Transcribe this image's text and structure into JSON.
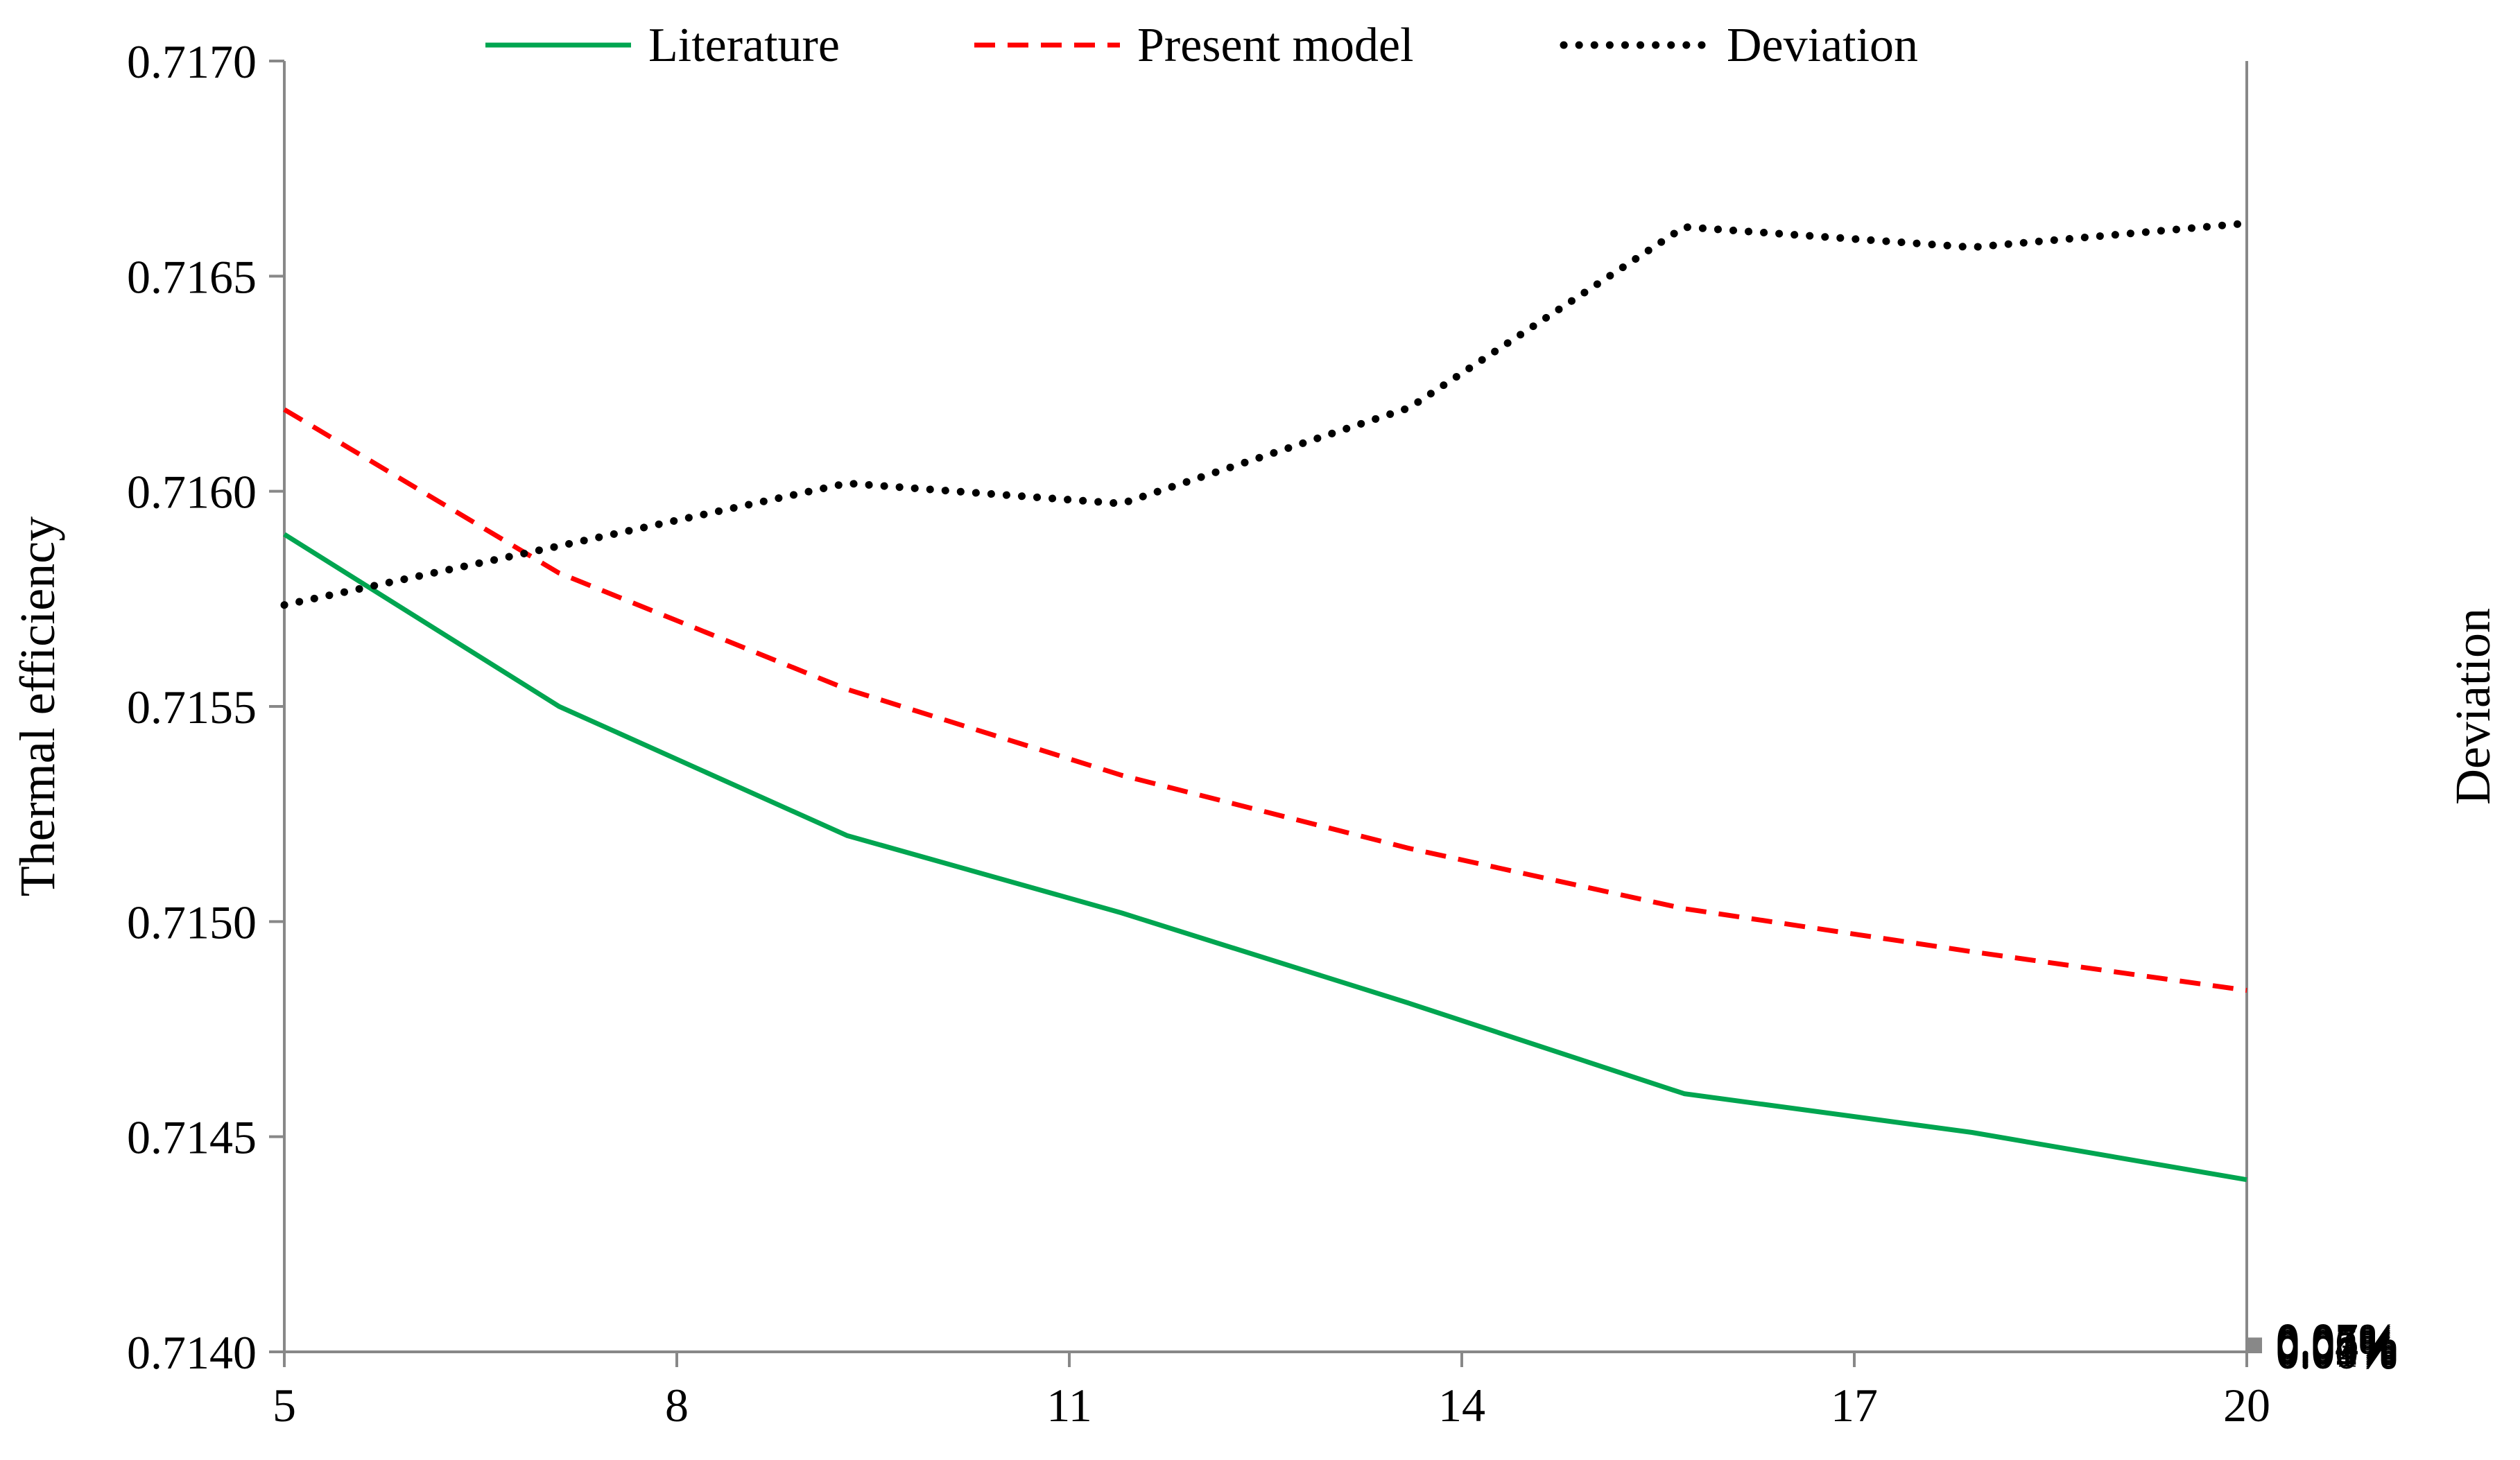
{
  "chart_data": {
    "type": "line",
    "title": "",
    "xlabel": "",
    "ylabel": "Thermal efficiency",
    "y2label": "Deviation",
    "xlim": [
      5,
      20
    ],
    "ylim": [
      0.714,
      0.717
    ],
    "y2lim": [
      0.0,
      0.07
    ],
    "grid": false,
    "legend_position": "top",
    "x_ticks": [
      "5",
      "8",
      "11",
      "14",
      "17",
      "20"
    ],
    "y_ticks": [
      "0.7140",
      "0.7145",
      "0.7150",
      "0.7155",
      "0.7160",
      "0.7165",
      "0.7170"
    ],
    "y2_ticks": [
      "0.00%",
      "0.01%",
      "0.02%",
      "0.03%",
      "0.04%",
      "0.05%",
      "0.06%",
      "0.07%"
    ],
    "series": [
      {
        "name": "Literature",
        "axis": "left",
        "style": "solid",
        "color": "#00a550",
        "x": [
          5,
          7.1,
          9.3,
          11.4,
          13.6,
          15.7,
          17.9,
          20
        ],
        "y": [
          0.7159,
          0.7155,
          0.7152,
          0.71502,
          0.71481,
          0.7146,
          0.71451,
          0.7144
        ]
      },
      {
        "name": "Present model",
        "axis": "left",
        "style": "dashed",
        "color": "#ff0000",
        "x": [
          5,
          7.1,
          9.3,
          11.4,
          13.6,
          15.7,
          17.9,
          20
        ],
        "y": [
          0.71619,
          0.71581,
          0.71554,
          0.71534,
          0.71517,
          0.71503,
          0.71493,
          0.71484
        ]
      },
      {
        "name": "Deviation",
        "axis": "right",
        "style": "dotted",
        "color": "#000000",
        "x": [
          5,
          7.1,
          9.3,
          11.4,
          13.6,
          15.7,
          17.9,
          20
        ],
        "y": [
          0.0405,
          0.0437,
          0.0471,
          0.046,
          0.0512,
          0.061,
          0.0599,
          0.0612
        ]
      }
    ]
  }
}
